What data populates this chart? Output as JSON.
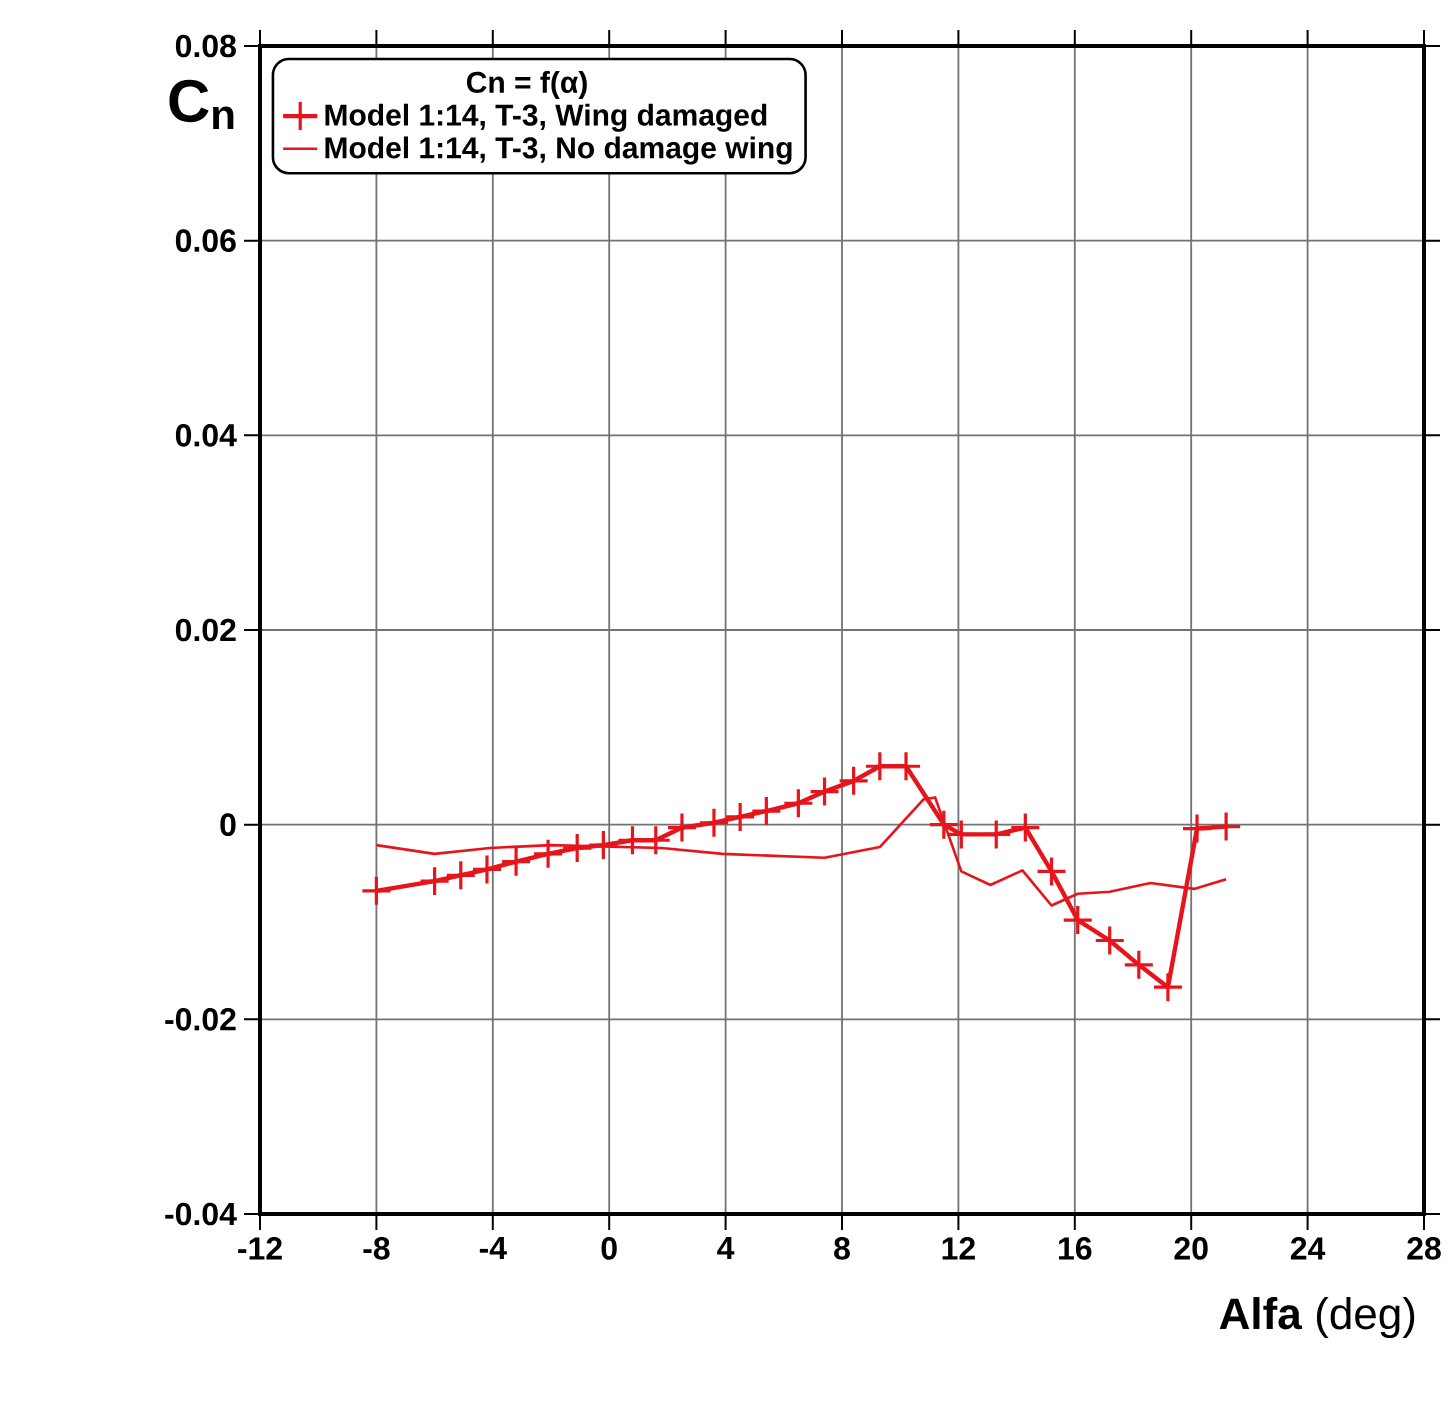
{
  "chart_data": {
    "type": "line",
    "xlabel": "**Alfa** (deg)",
    "ylabel": "C$_{n}$",
    "legend_title": "Cn = f(α)",
    "xlim": [
      -12,
      28
    ],
    "xticks": [
      -12,
      -8,
      -4,
      0,
      4,
      8,
      12,
      16,
      20,
      24,
      28
    ],
    "ylim": [
      -0.04,
      0.08
    ],
    "yticks": [
      {
        "value": -0.04,
        "label": "-0.04"
      },
      {
        "value": -0.02,
        "label": "-0.02"
      },
      {
        "value": 0,
        "label": "0"
      },
      {
        "value": 0.02,
        "label": "0.02"
      },
      {
        "value": 0.04,
        "label": "0.04"
      },
      {
        "value": 0.06,
        "label": "0.06"
      },
      {
        "value": 0.08,
        "label": "0.08"
      }
    ],
    "grid": true,
    "legend": "top left",
    "series": [
      {
        "name": "Model 1:14, T-3, Wing damaged",
        "color": "#e8141c",
        "marker": "cross",
        "x": [
          -8,
          -6,
          -5.1,
          -4.2,
          -3.2,
          -2.1,
          -1.1,
          -0.2,
          0.8,
          1.6,
          2.5,
          3.6,
          4.5,
          5.4,
          6.5,
          7.4,
          8.4,
          9.3,
          10.2,
          11.5,
          12.1,
          13.3,
          14.3,
          15.2,
          16.1,
          17.2,
          18.2,
          19.2,
          20.2,
          21.2
        ],
        "values": [
          -0.0068,
          -0.0058,
          -0.0052,
          -0.0046,
          -0.0038,
          -0.003,
          -0.0024,
          -0.0021,
          -0.0016,
          -0.0016,
          -0.0003,
          0.0002,
          0.0008,
          0.0014,
          0.0022,
          0.0034,
          0.0045,
          0.006,
          0.006,
          0.0,
          -0.001,
          -0.001,
          -0.0003,
          -0.0048,
          -0.0098,
          -0.0119,
          -0.0144,
          -0.0167,
          -0.0004,
          -0.0002
        ]
      },
      {
        "name": "Model 1:14, T-3, No damage wing",
        "color": "#e8141c",
        "marker": "none",
        "x": [
          -8,
          -6,
          -4.1,
          -2,
          1.8,
          3.9,
          7.4,
          9.3,
          10.8,
          11.2,
          12.1,
          13.1,
          14.2,
          15.2,
          16.1,
          17.2,
          18.6,
          20.1,
          21.2
        ],
        "values": [
          -0.0021,
          -0.003,
          -0.0024,
          -0.0021,
          -0.0024,
          -0.003,
          -0.0034,
          -0.0023,
          0.0026,
          0.0028,
          -0.0048,
          -0.0062,
          -0.0047,
          -0.0083,
          -0.0071,
          -0.0069,
          -0.006,
          -0.0066,
          -0.0056
        ]
      }
    ]
  }
}
